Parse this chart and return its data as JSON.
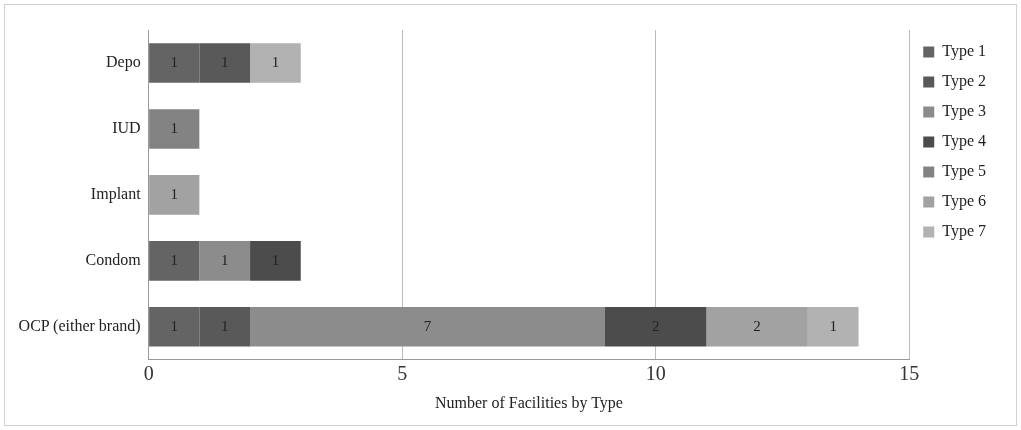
{
  "chart_data": {
    "type": "bar",
    "orientation": "horizontal",
    "stacked": true,
    "xlabel": "Number of Facilities by Type",
    "categories": [
      "Depo",
      "IUD",
      "Implant",
      "Condom",
      "OCP (either brand)"
    ],
    "series": [
      {
        "name": "Type 1",
        "color": "#646464",
        "values": [
          1,
          null,
          null,
          1,
          1
        ]
      },
      {
        "name": "Type 2",
        "color": "#595959",
        "values": [
          1,
          null,
          null,
          null,
          1
        ]
      },
      {
        "name": "Type 3",
        "color": "#8c8c8c",
        "values": [
          null,
          null,
          null,
          1,
          7
        ]
      },
      {
        "name": "Type 4",
        "color": "#4c4c4c",
        "values": [
          null,
          null,
          null,
          1,
          2
        ]
      },
      {
        "name": "Type 5",
        "color": "#838383",
        "values": [
          null,
          1,
          null,
          null,
          null
        ]
      },
      {
        "name": "Type 6",
        "color": "#a2a2a2",
        "values": [
          null,
          null,
          1,
          null,
          2
        ]
      },
      {
        "name": "Type 7",
        "color": "#b2b2b2",
        "values": [
          1,
          null,
          null,
          null,
          1
        ]
      }
    ],
    "xlim": [
      0,
      15
    ],
    "xticks": [
      0,
      5,
      10,
      15
    ],
    "grid": "x",
    "legend": "right",
    "data_labels": true
  }
}
